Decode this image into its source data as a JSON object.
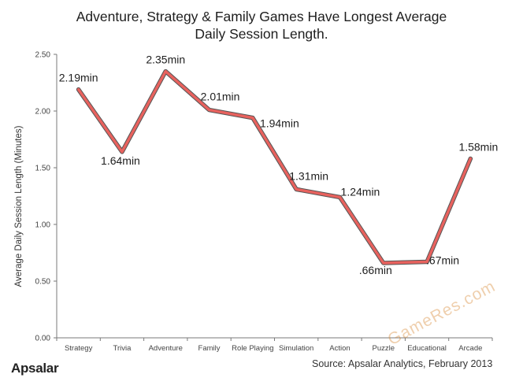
{
  "chart_data": {
    "type": "line",
    "title_line1": "Adventure, Strategy & Family Games Have Longest Average",
    "title_line2": "Daily Session Length.",
    "xlabel": "",
    "ylabel": "Average Daily Session Length (Minutes)",
    "ylim": [
      0,
      2.5
    ],
    "yticks": [
      "0.00",
      "0.50",
      "1.00",
      "1.50",
      "2.00",
      "2.50"
    ],
    "categories": [
      "Strategy",
      "Trivia",
      "Adventure",
      "Family",
      "Role Playing",
      "Simulation",
      "Action",
      "Puzzle",
      "Educational",
      "Arcade"
    ],
    "values": [
      2.19,
      1.64,
      2.35,
      2.01,
      1.94,
      1.31,
      1.24,
      0.66,
      0.67,
      1.58
    ],
    "data_labels": [
      "2.19min",
      "1.64min",
      "2.35min",
      "2.01min",
      "1.94min",
      "1.31min",
      "1.24min",
      ".66min",
      ".67min",
      "1.58min"
    ],
    "line_color": "#e8625e",
    "grid": false,
    "legend": "none"
  },
  "footer": {
    "logo": "Apsalar",
    "logo_mark": "Å",
    "source": "Source: Apsalar Analytics, February 2013"
  },
  "watermark": "GameRes.com"
}
